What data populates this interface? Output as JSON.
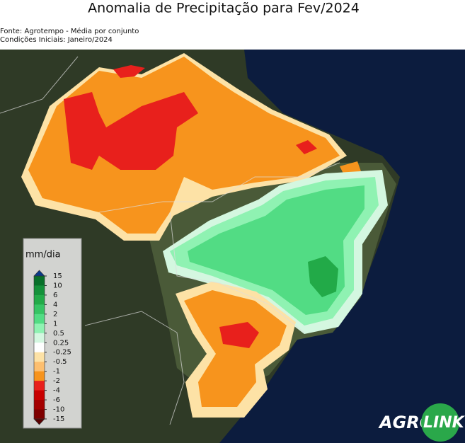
{
  "header": {
    "title": "Anomalia de Precipitação para Fev/2024",
    "source": "Fonte: Agrotempo - Média por conjunto",
    "conditions": "Condições Iniciais: Janeiro/2024"
  },
  "legend": {
    "unit": "mm/dia",
    "ticks": [
      "15",
      "10",
      "6",
      "4",
      "2",
      "1",
      "0.5",
      "0.25",
      "-0.25",
      "-0.5",
      "-1",
      "-2",
      "-4",
      "-6",
      "-10",
      "-15"
    ],
    "colors": [
      "#08702a",
      "#14913a",
      "#22aa48",
      "#36c464",
      "#52dc84",
      "#8ff2b2",
      "#d4f7e0",
      "#ffffff",
      "#fde2a6",
      "#fdbf6f",
      "#f7941d",
      "#e8201c",
      "#c80000",
      "#a40000",
      "#7e0000"
    ],
    "top_color": "#0a3a8a",
    "bottom_color": "#5a0000"
  },
  "logo": {
    "left": "AGRO",
    "right": "LINK"
  }
}
